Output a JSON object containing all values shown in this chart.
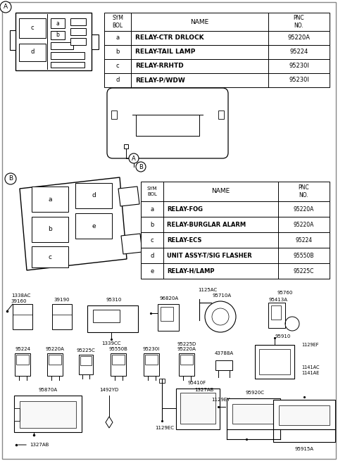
{
  "bg_color": "#ffffff",
  "table_A_rows": [
    [
      "a",
      "RELAY-CTR DRLOCK",
      "95220A"
    ],
    [
      "b",
      "RELAY-TAIL LAMP",
      "95224"
    ],
    [
      "c",
      "RELAY-RRHTD",
      "95230I"
    ],
    [
      "d",
      "RELAY-P/WDW",
      "95230I"
    ]
  ],
  "table_B_rows": [
    [
      "a",
      "RELAY-FOG",
      "95220A"
    ],
    [
      "b",
      "RELAY-BURGLAR ALARM",
      "95220A"
    ],
    [
      "c",
      "RELAY-ECS",
      "95224"
    ],
    [
      "d",
      "UNIT ASSY-T/SIG FLASHER",
      "95550B"
    ],
    [
      "e",
      "RELAY-H/LAMP",
      "95225C"
    ]
  ]
}
